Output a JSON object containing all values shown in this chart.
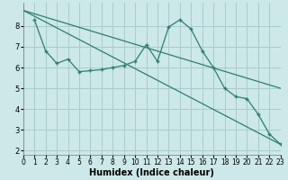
{
  "xlabel": "Humidex (Indice chaleur)",
  "bg_color": "#cce8e8",
  "grid_color": "#aacccc",
  "line_color": "#2e7d6e",
  "xlim": [
    0,
    23
  ],
  "ylim": [
    1.8,
    9.1
  ],
  "yticks": [
    2,
    3,
    4,
    5,
    6,
    7,
    8
  ],
  "xticks": [
    0,
    1,
    2,
    3,
    4,
    5,
    6,
    7,
    8,
    9,
    10,
    11,
    12,
    13,
    14,
    15,
    16,
    17,
    18,
    19,
    20,
    21,
    22,
    23
  ],
  "line1_x": [
    0,
    23
  ],
  "line1_y": [
    8.75,
    2.3
  ],
  "line2_x": [
    1,
    2,
    3,
    4,
    5,
    6,
    7,
    8,
    9,
    10,
    11,
    12,
    13,
    14,
    15,
    16,
    17,
    18,
    19,
    20,
    21,
    22,
    23
  ],
  "line2_y": [
    8.3,
    6.8,
    6.2,
    6.4,
    5.8,
    5.85,
    5.9,
    6.0,
    6.1,
    6.3,
    7.1,
    6.3,
    7.95,
    8.3,
    7.85,
    6.8,
    6.0,
    5.0,
    4.6,
    4.5,
    3.75,
    2.8,
    2.3
  ],
  "line3_x": [
    0,
    23
  ],
  "line3_y": [
    8.75,
    5.0
  ],
  "tick_fontsize": 6,
  "xlabel_fontsize": 7
}
